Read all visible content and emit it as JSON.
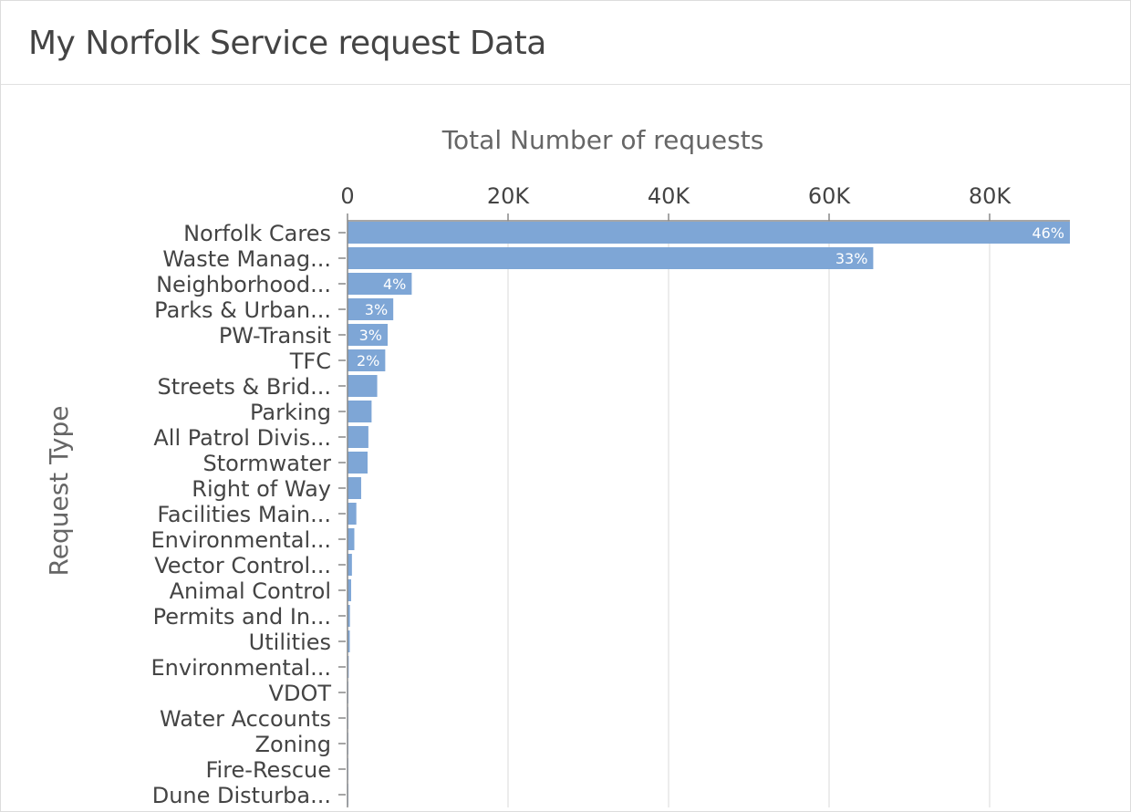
{
  "card": {
    "title": "My Norfolk Service request Data"
  },
  "colors": {
    "bar": "#7ea6d6",
    "grid": "#e6e6e6",
    "axis": "#888888"
  },
  "chart_data": {
    "type": "bar",
    "orientation": "horizontal",
    "title": "",
    "xlabel": "Total Number of requests",
    "ylabel": "Request Type",
    "xlim": [
      0,
      90000
    ],
    "x_ticks": [
      0,
      20000,
      40000,
      60000,
      80000
    ],
    "x_tick_labels": [
      "0",
      "20K",
      "40K",
      "60K",
      "80K"
    ],
    "x_axis_position": "top",
    "grid": true,
    "categories": [
      "Norfolk Cares",
      "Waste Manag...",
      "Neighborhood...",
      "Parks & Urban...",
      "PW-Transit",
      "TFC",
      "Streets & Brid...",
      "Parking",
      "All Patrol Divis...",
      "Stormwater",
      "Right of Way",
      "Facilities Main...",
      "Environmental...",
      "Vector Control...",
      "Animal Control",
      "Permits and In...",
      "Utilities",
      "Environmental...",
      "VDOT",
      "Water Accounts",
      "Zoning",
      "Fire-Rescue",
      "Dune Disturba..."
    ],
    "values": [
      90000,
      65500,
      8000,
      5700,
      5000,
      4700,
      3700,
      3000,
      2600,
      2500,
      1700,
      1100,
      850,
      550,
      450,
      300,
      280,
      150,
      100,
      80,
      60,
      40,
      20
    ],
    "data_labels": [
      "46%",
      "33%",
      "4%",
      "3%",
      "3%",
      "2%",
      "",
      "",
      "",
      "",
      "",
      "",
      "",
      "",
      "",
      "",
      "",
      "",
      "",
      "",
      "",
      "",
      ""
    ]
  }
}
